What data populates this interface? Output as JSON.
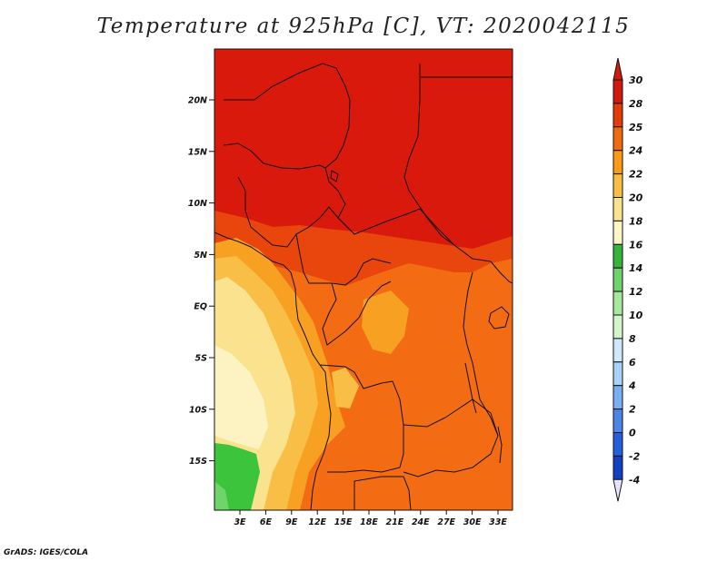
{
  "title": "Temperature at 925hPa [C], VT: 2020042115",
  "credit": "GrADS: IGES/COLA",
  "lat_ticks": [
    "20N",
    "15N",
    "10N",
    "5N",
    "EQ",
    "5S",
    "10S",
    "15S"
  ],
  "lon_ticks": [
    "3E",
    "6E",
    "9E",
    "12E",
    "15E",
    "18E",
    "21E",
    "24E",
    "27E",
    "30E",
    "33E"
  ],
  "colorbar": {
    "levels": [
      "30",
      "28",
      "25",
      "24",
      "22",
      "20",
      "18",
      "16",
      "14",
      "12",
      "10",
      "8",
      "6",
      "4",
      "2",
      "0",
      "-2",
      "-4"
    ],
    "colors": [
      "#d21a0a",
      "#e33b0a",
      "#f06a0e",
      "#f89a17",
      "#f9bd45",
      "#fbe28f",
      "#fdf7c4",
      "#36b43a",
      "#6fd26a",
      "#a6e89d",
      "#d4f5cc",
      "#cfe8fb",
      "#a8d2f8",
      "#77aff2",
      "#4a86e8",
      "#2460dd",
      "#1240c2",
      "#0c1f8a",
      "#06106a"
    ],
    "above_color": "#d21a0a",
    "below_color": "#e8e4fb"
  },
  "fill_colors": {
    "hot": "#d8190b",
    "warm": "#e8460d",
    "orange": "#f36c14",
    "amber": "#f8a021",
    "gold": "#f8be45",
    "pale": "#fbe28f",
    "cream": "#fdf3c2",
    "green": "#3bc43c",
    "lightgreen": "#6fd46a"
  }
}
